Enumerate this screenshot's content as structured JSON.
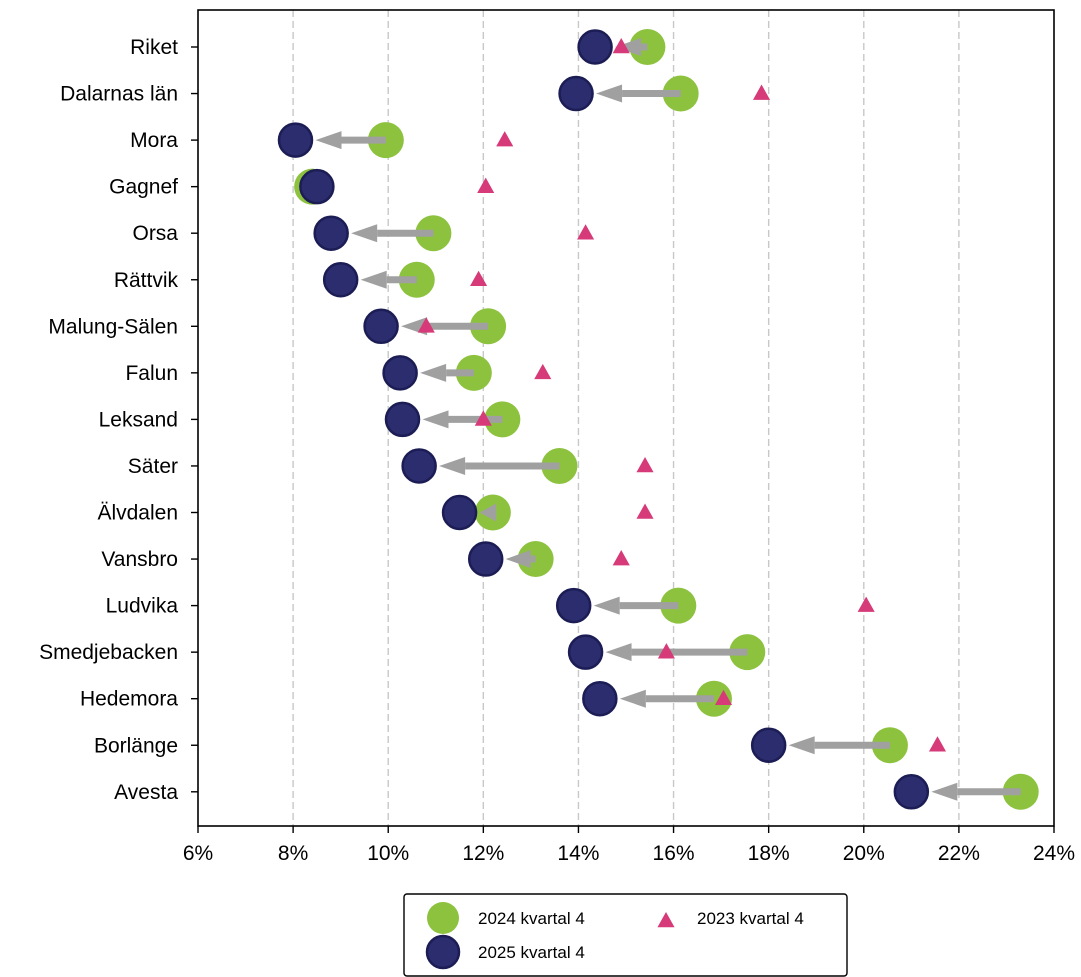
{
  "chart_data": {
    "type": "scatter",
    "categories": [
      "Riket",
      "Dalarnas län",
      "Mora",
      "Gagnef",
      "Orsa",
      "Rättvik",
      "Malung-Sälen",
      "Falun",
      "Leksand",
      "Säter",
      "Älvdalen",
      "Vansbro",
      "Ludvika",
      "Smedjebacken",
      "Hedemora",
      "Borlänge",
      "Avesta"
    ],
    "xlim": [
      6,
      24
    ],
    "xticks": [
      6,
      8,
      10,
      12,
      14,
      16,
      18,
      20,
      22,
      24
    ],
    "xtick_labels": [
      "6%",
      "8%",
      "10%",
      "12%",
      "14%",
      "16%",
      "18%",
      "20%",
      "22%",
      "24%"
    ],
    "grid": "vertical dashed",
    "legend_position": "bottom-center",
    "series": [
      {
        "name": "2024 kvartal 4",
        "color": "#8dc23f",
        "marker": "circle",
        "values": [
          15.45,
          16.15,
          9.95,
          8.4,
          10.95,
          10.6,
          12.1,
          11.8,
          12.4,
          13.6,
          12.2,
          13.1,
          16.1,
          17.55,
          16.85,
          20.55,
          23.3
        ]
      },
      {
        "name": "2025 kvartal 4",
        "color": "#2b2d6e",
        "marker": "circle",
        "values": [
          14.35,
          13.95,
          8.05,
          8.5,
          8.8,
          9.0,
          9.85,
          10.25,
          10.3,
          10.65,
          11.5,
          12.05,
          13.9,
          14.15,
          14.45,
          18.0,
          21.0
        ]
      },
      {
        "name": "2023 kvartal 4",
        "color": "#d63a78",
        "marker": "triangle",
        "values": [
          14.9,
          17.85,
          12.45,
          12.05,
          14.15,
          11.9,
          10.8,
          13.25,
          12.0,
          15.4,
          15.4,
          14.9,
          20.05,
          15.85,
          17.05,
          21.55,
          null
        ]
      }
    ],
    "arrow_color": "#a0a0a0"
  }
}
